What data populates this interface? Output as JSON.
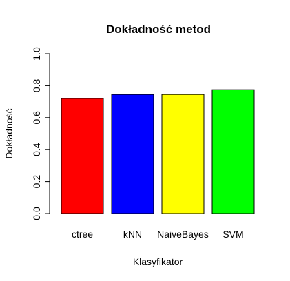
{
  "chart_data": {
    "type": "bar",
    "title": "Dokładność metod",
    "xlabel": "Klasyfikator",
    "ylabel": "Dokładność",
    "categories": [
      "ctree",
      "kNN",
      "NaiveBayes",
      "SVM"
    ],
    "values": [
      0.72,
      0.745,
      0.745,
      0.775
    ],
    "colors": [
      "#ff0000",
      "#0000ff",
      "#ffff00",
      "#00ff00"
    ],
    "ylim": [
      0,
      1
    ],
    "yticks": [
      "0.0",
      "0.2",
      "0.4",
      "0.6",
      "0.8",
      "1.0"
    ],
    "grid": false,
    "legend": "none"
  }
}
